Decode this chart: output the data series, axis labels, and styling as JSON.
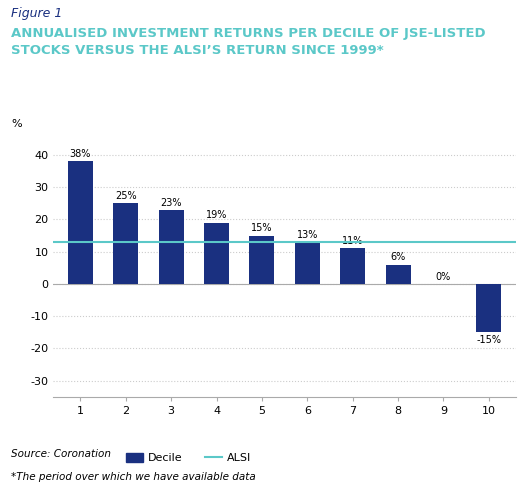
{
  "title_label": "Figure 1",
  "title": "ANNUALISED INVESTMENT RETURNS PER DECILE OF JSE-LISTED\nSTOCKS VERSUS THE ALSI’S RETURN SINCE 1999*",
  "categories": [
    1,
    2,
    3,
    4,
    5,
    6,
    7,
    8,
    9,
    10
  ],
  "values": [
    38,
    25,
    23,
    19,
    15,
    13,
    11,
    6,
    0,
    -15
  ],
  "alsi_value": 13,
  "bar_color": "#1a3080",
  "alsi_color": "#5bc8c8",
  "ylabel": "%",
  "ylim": [
    -35,
    45
  ],
  "yticks": [
    -30,
    -20,
    -10,
    0,
    10,
    20,
    30,
    40
  ],
  "source_text": "Source: Coronation",
  "footnote_text": "*The period over which we have available data",
  "title_label_color": "#1a3080",
  "title_color": "#5bc8c8",
  "background_color": "#ffffff",
  "legend_decile_label": "Decile",
  "legend_alsi_label": "ALSI"
}
